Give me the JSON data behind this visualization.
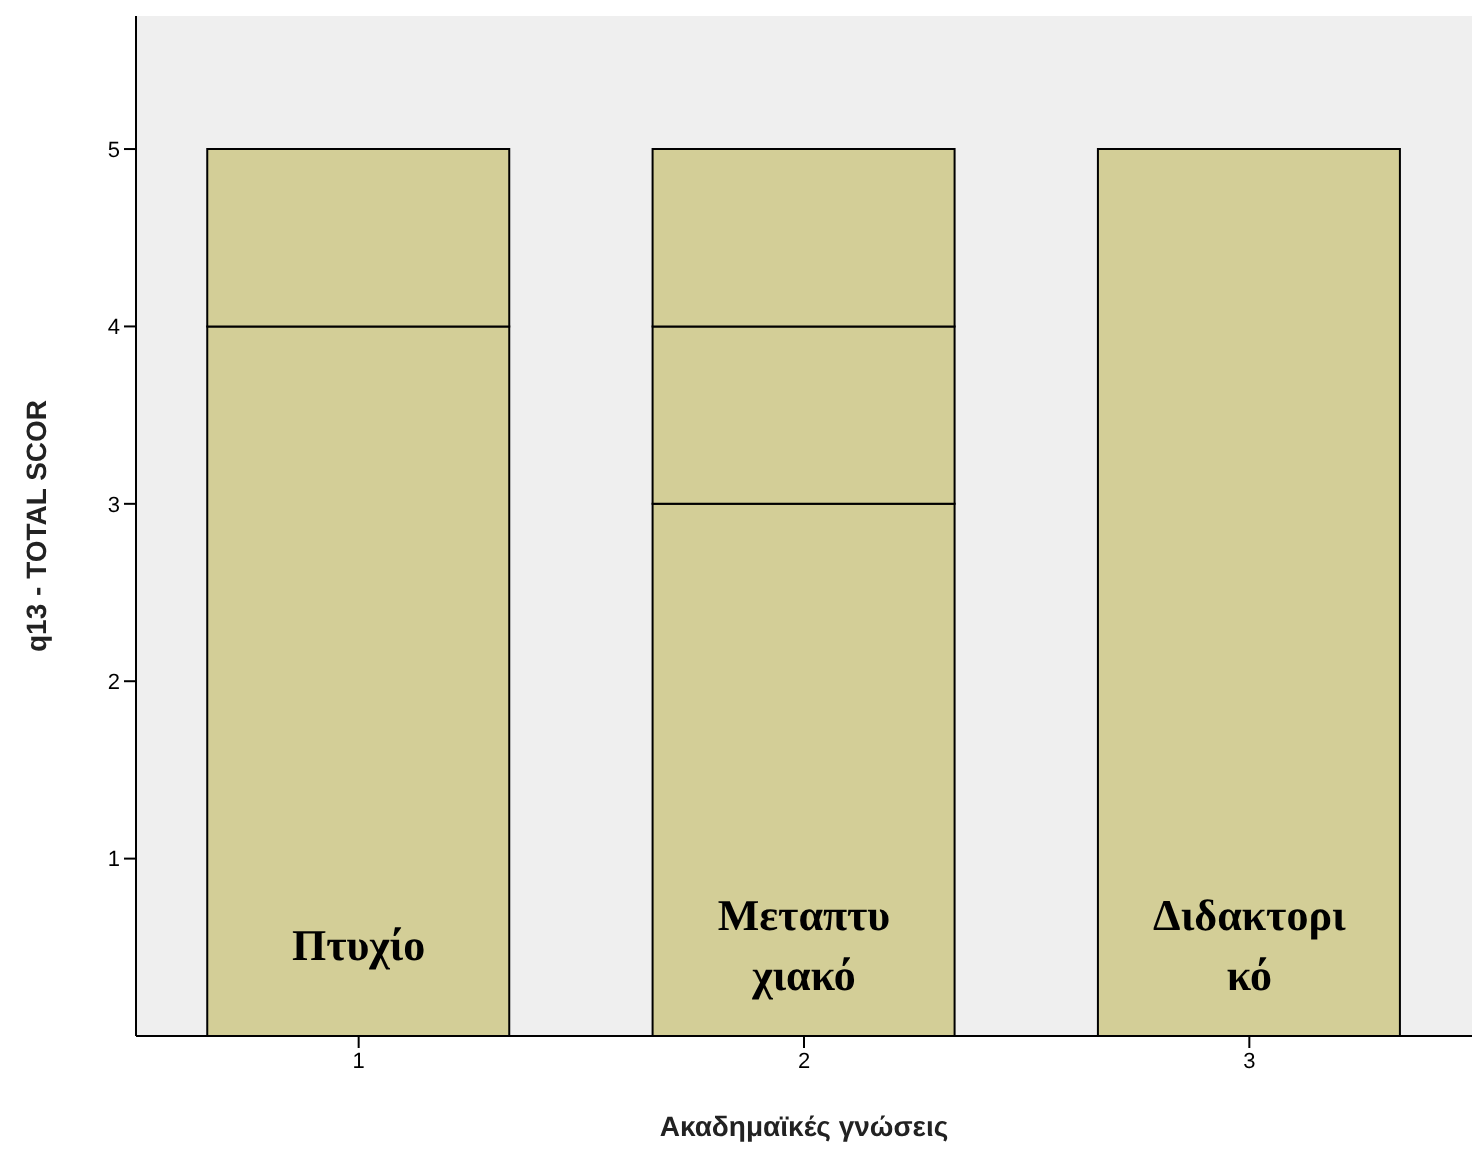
{
  "chart_data": {
    "type": "bar",
    "stacked": true,
    "categories": [
      "1",
      "2",
      "3"
    ],
    "series": [
      {
        "color": "#d3ce97",
        "values": [
          4,
          3,
          5
        ]
      },
      {
        "color": "#d3ce97",
        "values": [
          1,
          1,
          null
        ]
      },
      {
        "color": "#d3ce97",
        "values": [
          null,
          1,
          null
        ]
      }
    ],
    "xlabel": "Ακαδημαϊκές γνώσεις",
    "ylabel": "q13 - TOTAL SCOR",
    "ylim": [
      0,
      5.75
    ],
    "yticks": [
      1,
      2,
      3,
      4,
      5
    ],
    "grid": false,
    "annotations": [
      "Πτυχίο",
      "Μεταπτυ χιακό",
      "Διδακτορι κό"
    ]
  }
}
